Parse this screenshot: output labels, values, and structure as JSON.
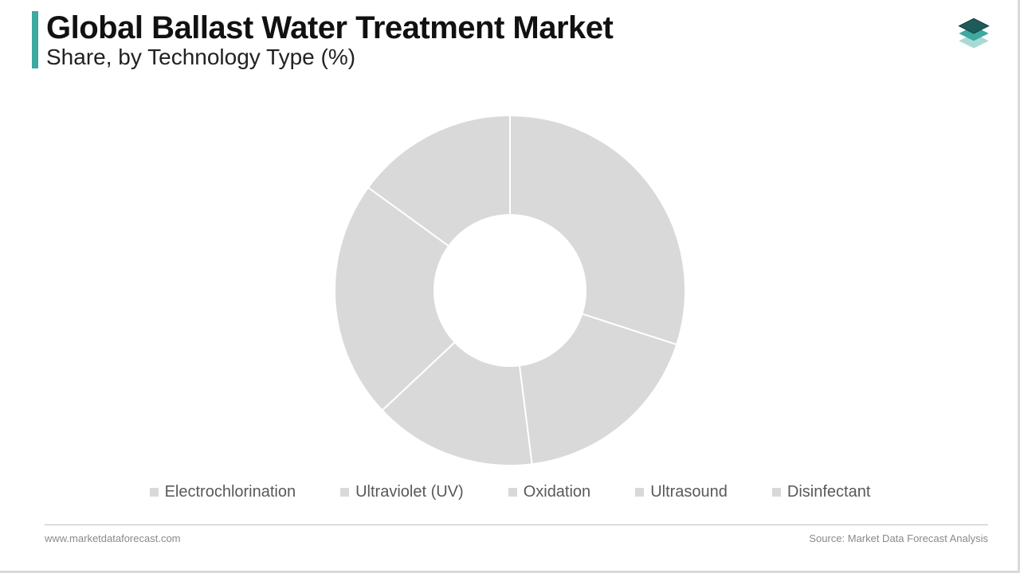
{
  "header": {
    "title": "Global Ballast Water Treatment Market",
    "subtitle": "Share, by Technology Type (%)",
    "accent_color": "#3da9a1"
  },
  "chart": {
    "type": "donut",
    "slices": [
      {
        "label": "Electrochlorination",
        "value": 30,
        "color": "#d9d9d9"
      },
      {
        "label": "Ultraviolet (UV)",
        "value": 18,
        "color": "#d9d9d9"
      },
      {
        "label": "Oxidation",
        "value": 15,
        "color": "#d9d9d9"
      },
      {
        "label": "Ultrasound",
        "value": 22,
        "color": "#d9d9d9"
      },
      {
        "label": "Disinfectant",
        "value": 15,
        "color": "#d9d9d9"
      }
    ],
    "outer_radius": 220,
    "inner_radius": 95,
    "gap_color": "#ffffff",
    "gap_width": 2,
    "start_angle_deg": -90,
    "background_color": "#ffffff"
  },
  "legend": {
    "swatch_color": "#d9d9d9",
    "text_color": "#595959",
    "font_size": 20,
    "items": [
      "Electrochlorination",
      "Ultraviolet (UV)",
      "Oxidation",
      "Ultrasound",
      "Disinfectant"
    ]
  },
  "footer": {
    "left": "www.marketdataforecast.com",
    "right": "Source: Market Data Forecast Analysis",
    "text_color": "#8a8a8a",
    "rule_color": "#bfbfbf"
  },
  "logo": {
    "colors": {
      "top": "#1f5b5a",
      "mid": "#3da9a1",
      "bot": "#a9d9d5"
    }
  }
}
